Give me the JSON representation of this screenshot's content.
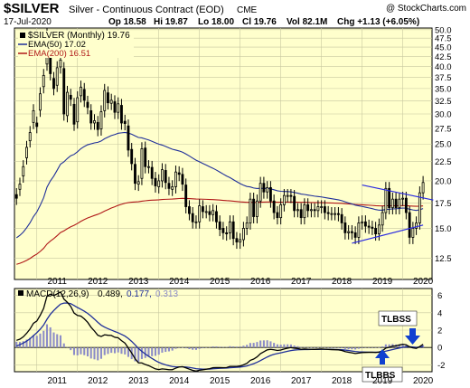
{
  "header": {
    "symbol": "$SILVER",
    "description": "Silver - Continuous Contract (EOD)",
    "exchange": "CME",
    "date": "17-Jul-2020",
    "open": "Op 18.58",
    "high": "Hi 19.87",
    "low": "Lo 18.00",
    "close": "Cl 19.76",
    "volume": "Vol 82.1M",
    "change": "Chg +1.13 (+6.05%)",
    "watermark": "@ StockCharts.com"
  },
  "legend": {
    "price": "$SILVER (Monthly) 19.76",
    "ema50": "EMA(50) 17.02",
    "ema200": "EMA(200) 16.51"
  },
  "macd": {
    "label": "MACD(12,26,9)",
    "macd_value": "0.489,",
    "signal_value": "0.177,",
    "hist_value": "0.313"
  },
  "annotations": {
    "tlbss": "TLBSS",
    "tlbbs": "TLBBS"
  },
  "colors": {
    "plot_bg": "#ffffcc",
    "grid": "#c8c8a0",
    "ema50": "#1f2f9a",
    "ema200": "#b01818",
    "trendline": "#2a2ae0",
    "histogram": "#8c8cc8",
    "arrow": "#1040d0",
    "candle": "#000000"
  },
  "chart_data": [
    {
      "type": "candlestick",
      "title": "$SILVER (Monthly)",
      "x_tick_labels": [
        "2011",
        "2012",
        "2013",
        "2014",
        "2015",
        "2016",
        "2017",
        "2018",
        "2019",
        "2020"
      ],
      "y_tick_labels": [
        "50.0",
        "47.5",
        "45.0",
        "42.5",
        "40.0",
        "37.5",
        "35.0",
        "32.5",
        "30.0",
        "27.5",
        "25.0",
        "22.5",
        "20.0",
        "17.5",
        "15.0",
        "12.5"
      ],
      "ylim": [
        11,
        50.5
      ],
      "y_scale": "log",
      "grid": true,
      "series": [
        {
          "name": "$SILVER",
          "x": [
            2010.5,
            2010.583,
            2010.667,
            2010.75,
            2010.833,
            2010.917,
            2011.0,
            2011.083,
            2011.167,
            2011.25,
            2011.333,
            2011.417,
            2011.5,
            2011.583,
            2011.667,
            2011.75,
            2011.833,
            2011.917,
            2012.0,
            2012.083,
            2012.167,
            2012.25,
            2012.333,
            2012.417,
            2012.5,
            2012.583,
            2012.667,
            2012.75,
            2012.833,
            2012.917,
            2013.0,
            2013.083,
            2013.167,
            2013.25,
            2013.333,
            2013.417,
            2013.5,
            2013.583,
            2013.667,
            2013.75,
            2013.833,
            2013.917,
            2014.0,
            2014.083,
            2014.167,
            2014.25,
            2014.333,
            2014.417,
            2014.5,
            2014.583,
            2014.667,
            2014.75,
            2014.833,
            2014.917,
            2015.0,
            2015.083,
            2015.167,
            2015.25,
            2015.333,
            2015.417,
            2015.5,
            2015.583,
            2015.667,
            2015.75,
            2015.833,
            2015.917,
            2016.0,
            2016.083,
            2016.167,
            2016.25,
            2016.333,
            2016.417,
            2016.5,
            2016.583,
            2016.667,
            2016.75,
            2016.833,
            2016.917,
            2017.0,
            2017.083,
            2017.167,
            2017.25,
            2017.333,
            2017.417,
            2017.5,
            2017.583,
            2017.667,
            2017.75,
            2017.833,
            2017.917,
            2018.0,
            2018.083,
            2018.167,
            2018.25,
            2018.333,
            2018.417,
            2018.5,
            2018.583,
            2018.667,
            2018.75,
            2018.833,
            2018.917,
            2019.0,
            2019.083,
            2019.167,
            2019.25,
            2019.333,
            2019.417,
            2019.5,
            2019.583,
            2019.667,
            2019.75,
            2019.833,
            2019.917,
            2020.0,
            2020.083,
            2020.167,
            2020.25,
            2020.333,
            2020.417,
            2020.5
          ],
          "close": [
            18.0,
            19.6,
            21.8,
            24.5,
            26.8,
            30.6,
            27.8,
            33.9,
            37.9,
            48.6,
            38.3,
            35.0,
            39.7,
            41.6,
            30.0,
            34.2,
            32.8,
            28.2,
            33.1,
            35.3,
            32.6,
            31.2,
            28.4,
            28.8,
            27.3,
            30.4,
            34.6,
            32.1,
            32.6,
            30.3,
            31.9,
            28.4,
            28.3,
            24.1,
            22.2,
            19.7,
            19.9,
            24.3,
            21.8,
            21.8,
            20.3,
            19.4,
            20.0,
            21.4,
            19.8,
            19.1,
            19.3,
            21.1,
            20.8,
            19.6,
            17.1,
            16.4,
            15.6,
            15.6,
            17.2,
            16.6,
            16.6,
            16.3,
            16.7,
            15.6,
            14.9,
            14.6,
            14.5,
            15.6,
            14.1,
            13.8,
            14.0,
            15.0,
            15.5,
            17.9,
            16.1,
            17.7,
            19.7,
            18.7,
            19.2,
            17.7,
            16.5,
            16.0,
            17.3,
            18.3,
            18.3,
            18.2,
            16.7,
            16.8,
            16.0,
            17.3,
            16.7,
            16.8,
            16.7,
            17.1,
            17.1,
            16.5,
            16.4,
            16.4,
            16.4,
            16.3,
            15.5,
            14.6,
            14.7,
            14.6,
            14.2,
            15.5,
            15.6,
            15.2,
            15.1,
            15.0,
            14.5,
            15.3,
            16.5,
            19.1,
            17.0,
            17.9,
            17.0,
            17.9,
            18.0,
            16.5,
            14.2,
            15.0,
            15.5,
            18.6,
            19.8
          ],
          "open_offset": [
            0.4,
            -0.6,
            -1.2,
            -1.5,
            -1.3,
            -2.1,
            0.6,
            -3.2,
            -2.5,
            -8.0,
            6.8,
            2.2,
            -4.0,
            -1.7,
            9.5,
            -4.5,
            0.8,
            3.6,
            -4.5,
            -1.8,
            2.2,
            1.0,
            2.2,
            -0.4,
            1.2,
            -3.0,
            -4.0,
            2.0,
            -0.6,
            2.0,
            -1.6,
            3.2,
            0.4,
            3.8,
            2.0,
            2.4,
            -0.3,
            -4.0,
            2.6,
            0.0,
            1.4,
            0.9,
            -0.7,
            -1.4,
            1.5,
            0.6,
            -0.3,
            -1.8,
            0.2,
            1.2,
            2.4,
            0.7,
            0.8,
            0.0,
            -1.6,
            0.5,
            0.0,
            0.3,
            -0.4,
            1.0,
            0.7,
            0.4,
            0.1,
            -1.0,
            1.5,
            0.3,
            -0.2,
            -1.0,
            -0.5,
            -2.4,
            1.8,
            -1.6,
            -2.0,
            1.0,
            -0.5,
            1.5,
            1.2,
            0.5,
            -1.3,
            -1.0,
            0.0,
            0.1,
            1.5,
            -0.1,
            0.8,
            -1.3,
            0.6,
            -0.1,
            0.1,
            -0.4,
            0.0,
            0.6,
            0.1,
            0.0,
            0.0,
            0.1,
            0.8,
            0.9,
            -0.1,
            0.1,
            0.4,
            -1.3,
            -0.1,
            0.4,
            0.1,
            0.1,
            0.5,
            -0.8,
            -1.2,
            -2.6,
            2.1,
            -0.9,
            0.9,
            -0.9,
            -0.1,
            1.5,
            2.3,
            -0.8,
            -0.5,
            -3.1,
            -1.2
          ]
        }
      ],
      "overlays": [
        {
          "name": "EMA(50)",
          "value": 17.02
        },
        {
          "name": "EMA(200)",
          "value": 16.51
        }
      ],
      "trendlines": [
        {
          "from": [
            2019.0,
            19.5
          ],
          "to": [
            2020.75,
            17.8
          ]
        },
        {
          "from": [
            2018.75,
            13.7
          ],
          "to": [
            2020.5,
            15.3
          ]
        }
      ]
    },
    {
      "type": "line",
      "title": "MACD(12,26,9)",
      "x_tick_labels": [
        "2011",
        "2012",
        "2013",
        "2014",
        "2015",
        "2016",
        "2017",
        "2018",
        "2019",
        "2020"
      ],
      "y_tick_labels": [
        "6",
        "4",
        "2",
        "0",
        "-2"
      ],
      "ylim": [
        -2.8,
        6.8
      ],
      "grid": true,
      "series": [
        {
          "name": "MACD",
          "value": 0.489
        },
        {
          "name": "Signal",
          "value": 0.177
        },
        {
          "name": "Histogram",
          "value": 0.313
        }
      ]
    }
  ]
}
